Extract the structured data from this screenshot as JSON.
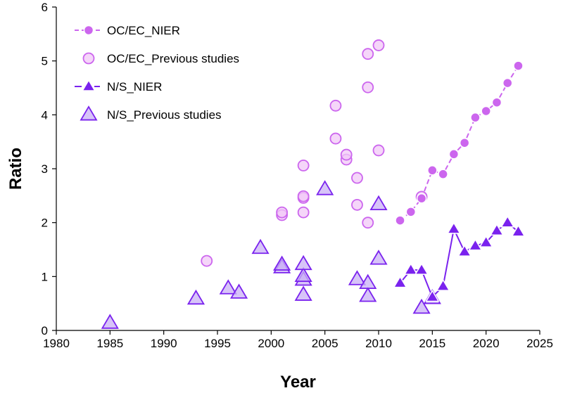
{
  "chart_data": {
    "type": "scatter",
    "title": "",
    "xlabel": "Year",
    "ylabel": "Ratio",
    "xlim": [
      1980,
      2025
    ],
    "ylim": [
      0,
      6
    ],
    "xticks": [
      1980,
      1985,
      1990,
      1995,
      2000,
      2005,
      2010,
      2015,
      2020,
      2025
    ],
    "yticks": [
      0,
      1,
      2,
      3,
      4,
      5,
      6
    ],
    "grid": false,
    "legend_position": "top-left",
    "series": [
      {
        "name": "OC/EC_NIER",
        "style": "dashed-line-filled-circle",
        "color": "#cc66ee",
        "x": [
          2012,
          2013,
          2014,
          2015,
          2016,
          2017,
          2018,
          2019,
          2020,
          2021,
          2022,
          2023
        ],
        "y": [
          2.04,
          2.2,
          2.45,
          2.97,
          2.9,
          3.27,
          3.48,
          3.95,
          4.07,
          4.23,
          4.59,
          4.91
        ]
      },
      {
        "name": "OC/EC_Previous studies",
        "style": "open-circle",
        "color": "#cc66ee",
        "x": [
          1994,
          2001,
          2001,
          2003,
          2003,
          2003,
          2003,
          2006,
          2006,
          2007,
          2007,
          2008,
          2008,
          2009,
          2009,
          2009,
          2010,
          2010,
          2014
        ],
        "y": [
          1.29,
          2.14,
          2.19,
          2.19,
          2.46,
          2.49,
          3.06,
          3.56,
          4.17,
          3.17,
          3.26,
          2.33,
          2.83,
          2.0,
          4.51,
          5.13,
          3.34,
          5.29,
          2.48
        ]
      },
      {
        "name": "N/S_NIER",
        "style": "dashed-line-filled-triangle",
        "color": "#7a22ee",
        "x": [
          2012,
          2013,
          2014,
          2015,
          2016,
          2017,
          2018,
          2019,
          2020,
          2021,
          2022,
          2023
        ],
        "y": [
          0.88,
          1.12,
          1.12,
          0.62,
          0.82,
          1.88,
          1.46,
          1.57,
          1.63,
          1.85,
          2.0,
          1.83
        ]
      },
      {
        "name": "N/S_Previous studies",
        "style": "open-triangle",
        "color": "#7a22ee",
        "x": [
          1985,
          1993,
          1996,
          1997,
          1999,
          2001,
          2001,
          2003,
          2003,
          2003,
          2003,
          2005,
          2008,
          2009,
          2009,
          2010,
          2010,
          2014,
          2015
        ],
        "y": [
          0.14,
          0.59,
          0.78,
          0.7,
          1.53,
          1.17,
          1.22,
          0.66,
          0.94,
          1.01,
          1.23,
          2.62,
          0.95,
          0.64,
          0.88,
          1.33,
          2.34,
          0.42,
          0.6
        ]
      }
    ]
  }
}
